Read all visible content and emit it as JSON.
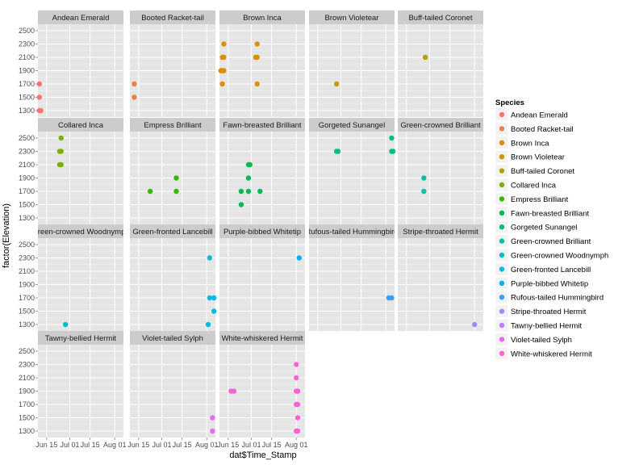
{
  "chart_data": {
    "type": "scatter",
    "facet_by": "Species",
    "xlabel": "dat$Time_Stamp",
    "ylabel": "factor(Elevation)",
    "x_ticks": [
      "Jun 15",
      "Jul 01",
      "Jul 15",
      "Aug 01"
    ],
    "x_range": [
      "2013-06-09",
      "2013-08-07"
    ],
    "y_levels": [
      "1300",
      "1500",
      "1700",
      "1900",
      "2100",
      "2300",
      "2500"
    ],
    "legend_title": "Species",
    "legend_position": "right",
    "grid": true,
    "panel_background": "#e5e5e5",
    "series": [
      {
        "name": "Andean Emerald",
        "color": "#F8766D",
        "points": [
          {
            "x": "2013-06-10",
            "y": "1700"
          },
          {
            "x": "2013-06-10",
            "y": "1500"
          },
          {
            "x": "2013-06-10",
            "y": "1300"
          },
          {
            "x": "2013-06-11",
            "y": "1300"
          }
        ]
      },
      {
        "name": "Booted Racket-tail",
        "color": "#EE8043",
        "points": [
          {
            "x": "2013-06-12",
            "y": "1700"
          },
          {
            "x": "2013-06-12",
            "y": "1500"
          }
        ]
      },
      {
        "name": "Brown Inca",
        "color": "#DD8D00",
        "points": [
          {
            "x": "2013-06-12",
            "y": "2300"
          },
          {
            "x": "2013-06-11",
            "y": "2100"
          },
          {
            "x": "2013-06-12",
            "y": "2100"
          },
          {
            "x": "2013-06-10",
            "y": "1900"
          },
          {
            "x": "2013-06-11",
            "y": "1900"
          },
          {
            "x": "2013-06-12",
            "y": "1900"
          },
          {
            "x": "2013-06-11",
            "y": "1700"
          },
          {
            "x": "2013-07-05",
            "y": "2300"
          },
          {
            "x": "2013-07-04",
            "y": "2100"
          },
          {
            "x": "2013-07-05",
            "y": "2100"
          },
          {
            "x": "2013-07-05",
            "y": "1700"
          }
        ]
      },
      {
        "name": "Brown Violetear",
        "color": "#C99800",
        "points": [
          {
            "x": "2013-06-28",
            "y": "1700"
          }
        ]
      },
      {
        "name": "Buff-tailed Coronet",
        "color": "#B0A100",
        "points": [
          {
            "x": "2013-06-28",
            "y": "2100"
          }
        ]
      },
      {
        "name": "Collared Inca",
        "color": "#7CAE00",
        "points": [
          {
            "x": "2013-06-25",
            "y": "2500"
          },
          {
            "x": "2013-06-24",
            "y": "2300"
          },
          {
            "x": "2013-06-25",
            "y": "2300"
          },
          {
            "x": "2013-06-24",
            "y": "2100"
          },
          {
            "x": "2013-06-25",
            "y": "2100"
          }
        ]
      },
      {
        "name": "Empress Brilliant",
        "color": "#39B600",
        "points": [
          {
            "x": "2013-06-23",
            "y": "1700"
          },
          {
            "x": "2013-07-11",
            "y": "1900"
          },
          {
            "x": "2013-07-11",
            "y": "1700"
          }
        ]
      },
      {
        "name": "Fawn-breasted Brilliant",
        "color": "#00BB4E",
        "points": [
          {
            "x": "2013-06-24",
            "y": "1700"
          },
          {
            "x": "2013-06-24",
            "y": "1500"
          },
          {
            "x": "2013-06-29",
            "y": "2100"
          },
          {
            "x": "2013-06-30",
            "y": "2100"
          },
          {
            "x": "2013-06-29",
            "y": "1900"
          },
          {
            "x": "2013-06-29",
            "y": "1700"
          },
          {
            "x": "2013-07-07",
            "y": "1700"
          }
        ]
      },
      {
        "name": "Gorgeted Sunangel",
        "color": "#00BF7D",
        "points": [
          {
            "x": "2013-06-28",
            "y": "2300"
          },
          {
            "x": "2013-06-29",
            "y": "2300"
          },
          {
            "x": "2013-08-05",
            "y": "2500"
          },
          {
            "x": "2013-08-05",
            "y": "2300"
          },
          {
            "x": "2013-08-06",
            "y": "2300"
          }
        ]
      },
      {
        "name": "Green-crowned Brilliant",
        "color": "#00C1A3",
        "points": [
          {
            "x": "2013-06-27",
            "y": "1900"
          },
          {
            "x": "2013-06-27",
            "y": "1700"
          }
        ]
      },
      {
        "name": "Green-crowned Woodnymph",
        "color": "#00BFC4",
        "points": [
          {
            "x": "2013-06-28",
            "y": "1300"
          }
        ]
      },
      {
        "name": "Green-fronted Lancebill",
        "color": "#00BAE0",
        "points": [
          {
            "x": "2013-08-03",
            "y": "2300"
          },
          {
            "x": "2013-08-03",
            "y": "1700"
          },
          {
            "x": "2013-08-06",
            "y": "1700"
          },
          {
            "x": "2013-08-06",
            "y": "1500"
          },
          {
            "x": "2013-08-02",
            "y": "1300"
          }
        ]
      },
      {
        "name": "Purple-bibbed Whitetip",
        "color": "#00B0F6",
        "points": [
          {
            "x": "2013-08-03",
            "y": "2300"
          }
        ]
      },
      {
        "name": "Rufous-tailed Hummingbird",
        "color": "#35A2FF",
        "points": [
          {
            "x": "2013-08-03",
            "y": "1700"
          },
          {
            "x": "2013-08-05",
            "y": "1700"
          }
        ]
      },
      {
        "name": "Stripe-throated Hermit",
        "color": "#9590FF",
        "points": [
          {
            "x": "2013-08-01",
            "y": "1300"
          }
        ]
      },
      {
        "name": "Tawny-bellied Hermit",
        "color": "#C77CFF",
        "points": []
      },
      {
        "name": "Violet-tailed Sylph",
        "color": "#E76BF3",
        "points": [
          {
            "x": "2013-08-05",
            "y": "1500"
          },
          {
            "x": "2013-08-05",
            "y": "1300"
          }
        ]
      },
      {
        "name": "White-whiskered Hermit",
        "color": "#FA62DB",
        "points": [
          {
            "x": "2013-06-17",
            "y": "1900"
          },
          {
            "x": "2013-06-19",
            "y": "1900"
          },
          {
            "x": "2013-08-01",
            "y": "2300"
          },
          {
            "x": "2013-08-01",
            "y": "2100"
          },
          {
            "x": "2013-08-01",
            "y": "1900"
          },
          {
            "x": "2013-08-02",
            "y": "1900"
          },
          {
            "x": "2013-08-01",
            "y": "1700"
          },
          {
            "x": "2013-08-02",
            "y": "1700"
          },
          {
            "x": "2013-08-02",
            "y": "1500"
          },
          {
            "x": "2013-08-01",
            "y": "1300"
          },
          {
            "x": "2013-08-02",
            "y": "1300"
          }
        ]
      }
    ],
    "facets": [
      {
        "title": "Andean Emerald",
        "series": 0
      },
      {
        "title": "Booted Racket-tail",
        "series": 1
      },
      {
        "title": "Brown Inca",
        "series": 2
      },
      {
        "title": "Brown Violetear",
        "series": 3
      },
      {
        "title": "Buff-tailed Coronet",
        "series": 4
      },
      {
        "title": "Collared Inca",
        "series": 5
      },
      {
        "title": "Empress Brilliant",
        "series": 6
      },
      {
        "title": "Fawn-breasted Brilliant",
        "series": 7
      },
      {
        "title": "Gorgeted Sunangel",
        "series": 8
      },
      {
        "title": "Green-crowned Brilliant",
        "series": 9
      },
      {
        "title": "Green-crowned Woodnymph",
        "series": 10
      },
      {
        "title": "Green-fronted Lancebill",
        "series": 11
      },
      {
        "title": "Purple-bibbed Whitetip",
        "series": 12
      },
      {
        "title": "Rufous-tailed Hummingbird",
        "series": 13
      },
      {
        "title": "Stripe-throated Hermit",
        "series": 14
      },
      {
        "title": "Tawny-bellied Hermit",
        "series": 15
      },
      {
        "title": "Violet-tailed Sylph",
        "series": 16
      },
      {
        "title": "White-whiskered Hermit",
        "series": 17
      }
    ]
  }
}
